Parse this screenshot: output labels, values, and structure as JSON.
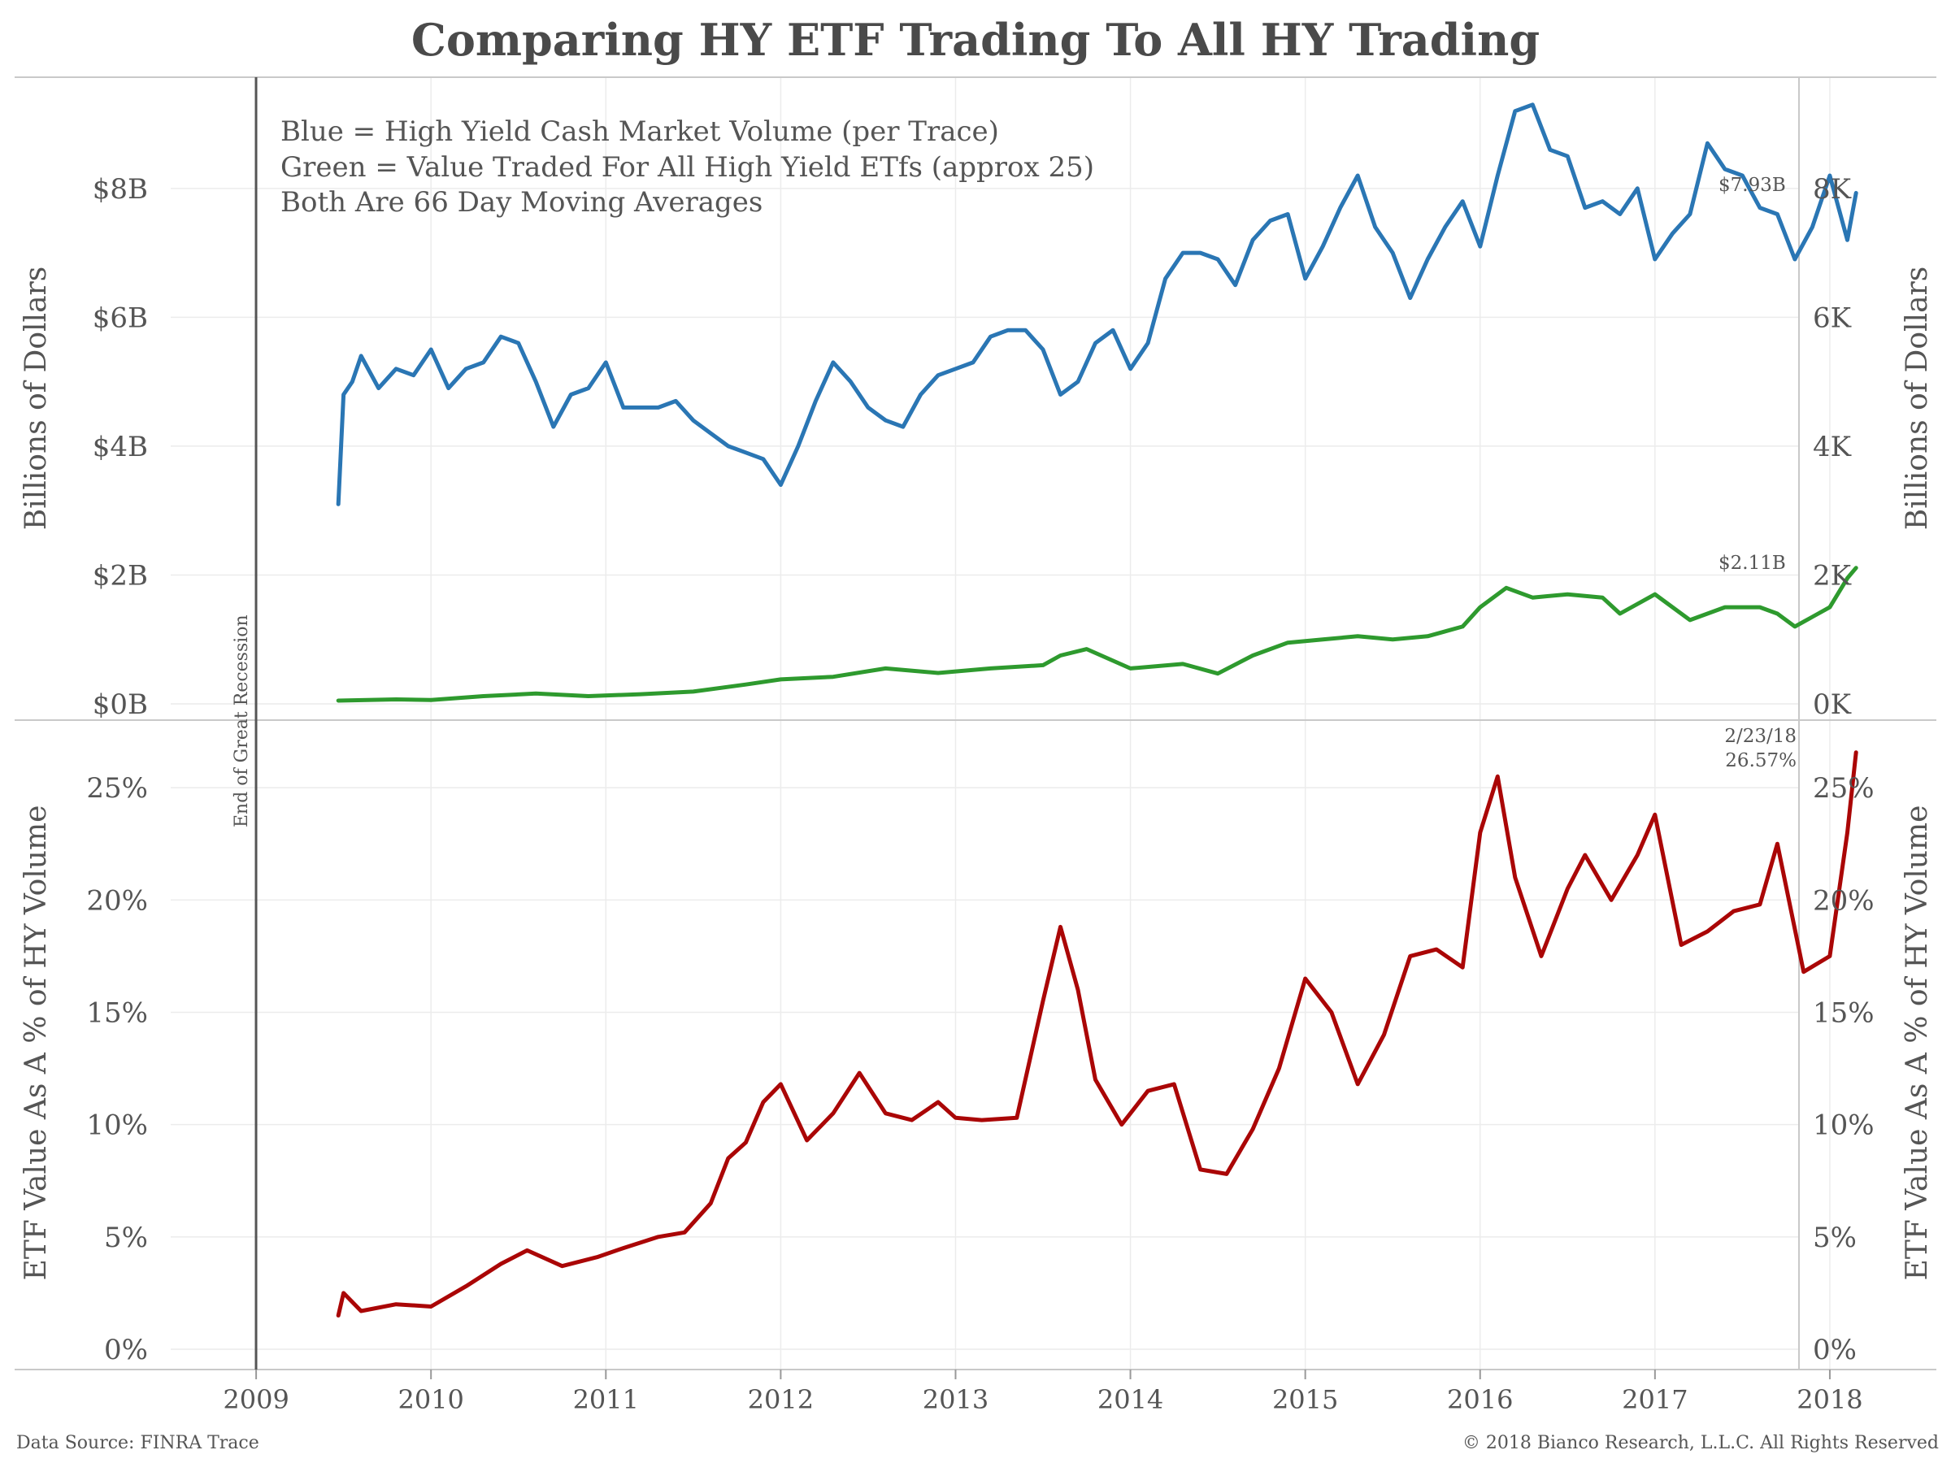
{
  "title": "Comparing HY ETF Trading To All HY Trading",
  "footer": {
    "source": "Data Source: FINRA Trace",
    "copyright": "© 2018 Bianco Research, L.L.C. All Rights Reserved"
  },
  "colors": {
    "blue": "#2a76b4",
    "green": "#2e9a2e",
    "red": "#aa0606",
    "title": "#4a4a4a",
    "recession_line": "#555555"
  },
  "annotations": {
    "recession_label": "End of Great Recession",
    "legend_blue": "Blue = High Yield Cash Market Volume (per Trace)",
    "legend_green": "Green = Value Traded For All High Yield ETfs (approx 25)",
    "legend_note": "Both Are 66 Day Moving Averages",
    "blue_last": "$7.93B",
    "green_last": "$2.11B",
    "red_last_date": "2/23/18",
    "red_last_value": "26.57%"
  },
  "chart_data": [
    {
      "type": "line",
      "panel": "top",
      "ylabel": "Billions of Dollars",
      "ylabel_right": "Billions of Dollars",
      "ylim": [
        0,
        9.6
      ],
      "y_ticks_left": [
        "$0B",
        "$2B",
        "$4B",
        "$6B",
        "$8B"
      ],
      "y_ticks_right": [
        "0K",
        "2K",
        "4K",
        "6K",
        "8K"
      ],
      "y_tick_values": [
        0,
        2,
        4,
        6,
        8
      ],
      "series": [
        {
          "color": "#2a76b4",
          "x": [
            2009.47,
            2009.5,
            2009.55,
            2009.6,
            2009.7,
            2009.8,
            2009.9,
            2010.0,
            2010.1,
            2010.2,
            2010.3,
            2010.4,
            2010.5,
            2010.6,
            2010.7,
            2010.8,
            2010.9,
            2011.0,
            2011.1,
            2011.2,
            2011.3,
            2011.4,
            2011.5,
            2011.6,
            2011.7,
            2011.8,
            2011.9,
            2012.0,
            2012.1,
            2012.2,
            2012.3,
            2012.4,
            2012.5,
            2012.6,
            2012.7,
            2012.8,
            2012.9,
            2013.0,
            2013.1,
            2013.2,
            2013.3,
            2013.4,
            2013.5,
            2013.6,
            2013.7,
            2013.8,
            2013.9,
            2014.0,
            2014.1,
            2014.2,
            2014.3,
            2014.4,
            2014.5,
            2014.6,
            2014.7,
            2014.8,
            2014.9,
            2015.0,
            2015.1,
            2015.2,
            2015.3,
            2015.4,
            2015.5,
            2015.6,
            2015.7,
            2015.8,
            2015.9,
            2016.0,
            2016.1,
            2016.2,
            2016.3,
            2016.4,
            2016.5,
            2016.6,
            2016.7,
            2016.8,
            2016.9,
            2017.0,
            2017.1,
            2017.2,
            2017.3,
            2017.4,
            2017.5,
            2017.6,
            2017.7,
            2017.8,
            2017.9,
            2018.0,
            2018.1,
            2018.15
          ],
          "values": [
            3.1,
            4.8,
            5.0,
            5.4,
            4.9,
            5.2,
            5.1,
            5.5,
            4.9,
            5.2,
            5.3,
            5.7,
            5.6,
            5.0,
            4.3,
            4.8,
            4.9,
            5.3,
            4.6,
            4.6,
            4.6,
            4.7,
            4.4,
            4.2,
            4.0,
            3.9,
            3.8,
            3.4,
            4.0,
            4.7,
            5.3,
            5.0,
            4.6,
            4.4,
            4.3,
            4.8,
            5.1,
            5.2,
            5.3,
            5.7,
            5.8,
            5.8,
            5.5,
            4.8,
            5.0,
            5.6,
            5.8,
            5.2,
            5.6,
            6.6,
            7.0,
            7.0,
            6.9,
            6.5,
            7.2,
            7.5,
            7.6,
            6.6,
            7.1,
            7.7,
            8.2,
            7.4,
            7.0,
            6.3,
            6.9,
            7.4,
            7.8,
            7.1,
            8.2,
            9.2,
            9.3,
            8.6,
            8.5,
            7.7,
            7.8,
            7.6,
            8.0,
            6.9,
            7.3,
            7.6,
            8.7,
            8.3,
            8.2,
            7.7,
            7.6,
            6.9,
            7.4,
            8.2,
            7.2,
            7.93
          ]
        },
        {
          "color": "#2e9a2e",
          "x": [
            2009.47,
            2009.8,
            2010.0,
            2010.3,
            2010.6,
            2010.9,
            2011.2,
            2011.5,
            2011.8,
            2012.0,
            2012.3,
            2012.6,
            2012.9,
            2013.2,
            2013.5,
            2013.6,
            2013.75,
            2014.0,
            2014.3,
            2014.5,
            2014.7,
            2014.9,
            2015.1,
            2015.3,
            2015.5,
            2015.7,
            2015.9,
            2016.0,
            2016.15,
            2016.3,
            2016.5,
            2016.7,
            2016.8,
            2017.0,
            2017.2,
            2017.4,
            2017.6,
            2017.7,
            2017.8,
            2017.9,
            2018.0,
            2018.1,
            2018.15
          ],
          "values": [
            0.05,
            0.07,
            0.06,
            0.12,
            0.16,
            0.12,
            0.15,
            0.19,
            0.3,
            0.38,
            0.42,
            0.55,
            0.48,
            0.55,
            0.6,
            0.75,
            0.85,
            0.55,
            0.62,
            0.47,
            0.75,
            0.95,
            1.0,
            1.05,
            1.0,
            1.05,
            1.2,
            1.5,
            1.8,
            1.65,
            1.7,
            1.65,
            1.4,
            1.7,
            1.3,
            1.5,
            1.5,
            1.4,
            1.2,
            1.35,
            1.5,
            1.95,
            2.11
          ]
        }
      ]
    },
    {
      "type": "line",
      "panel": "bottom",
      "ylabel": "ETF Value As A % of HY Volume",
      "ylabel_right": "ETF Value As A % of HY Volume",
      "ylim": [
        0,
        27.5
      ],
      "y_ticks_left": [
        "0%",
        "5%",
        "10%",
        "15%",
        "20%",
        "25%"
      ],
      "y_ticks_right": [
        "0%",
        "5%",
        "10%",
        "15%",
        "20%",
        "25%"
      ],
      "y_tick_values": [
        0,
        5,
        10,
        15,
        20,
        25
      ],
      "x_ticks": [
        "2009",
        "2010",
        "2011",
        "2012",
        "2013",
        "2014",
        "2015",
        "2016",
        "2017",
        "2018"
      ],
      "x_tick_values": [
        2009,
        2010,
        2011,
        2012,
        2013,
        2014,
        2015,
        2016,
        2017,
        2018
      ],
      "xlim": [
        2008.0,
        2018.6
      ],
      "series": [
        {
          "color": "#aa0606",
          "x": [
            2009.47,
            2009.5,
            2009.6,
            2009.8,
            2010.0,
            2010.2,
            2010.4,
            2010.55,
            2010.75,
            2010.95,
            2011.1,
            2011.3,
            2011.45,
            2011.6,
            2011.7,
            2011.8,
            2011.9,
            2012.0,
            2012.15,
            2012.3,
            2012.45,
            2012.6,
            2012.75,
            2012.9,
            2013.0,
            2013.15,
            2013.35,
            2013.5,
            2013.6,
            2013.7,
            2013.8,
            2013.95,
            2014.1,
            2014.25,
            2014.4,
            2014.55,
            2014.7,
            2014.85,
            2015.0,
            2015.15,
            2015.3,
            2015.45,
            2015.6,
            2015.75,
            2015.9,
            2016.0,
            2016.1,
            2016.2,
            2016.35,
            2016.5,
            2016.6,
            2016.75,
            2016.9,
            2017.0,
            2017.15,
            2017.3,
            2017.45,
            2017.6,
            2017.7,
            2017.85,
            2018.0,
            2018.1,
            2018.15
          ],
          "values": [
            1.5,
            2.5,
            1.7,
            2.0,
            1.9,
            2.8,
            3.8,
            4.4,
            3.7,
            4.1,
            4.5,
            5.0,
            5.2,
            6.5,
            8.5,
            9.2,
            11.0,
            11.8,
            9.3,
            10.5,
            12.3,
            10.5,
            10.2,
            11.0,
            10.3,
            10.2,
            10.3,
            15.5,
            18.8,
            16.0,
            12.0,
            10.0,
            11.5,
            11.8,
            8.0,
            7.8,
            9.8,
            12.5,
            16.5,
            15.0,
            11.8,
            14.0,
            17.5,
            17.8,
            17.0,
            23.0,
            25.5,
            21.0,
            17.5,
            20.5,
            22.0,
            20.0,
            22.0,
            23.8,
            18.0,
            18.6,
            19.5,
            19.8,
            22.5,
            16.8,
            17.5,
            23.0,
            26.57
          ]
        }
      ]
    }
  ]
}
